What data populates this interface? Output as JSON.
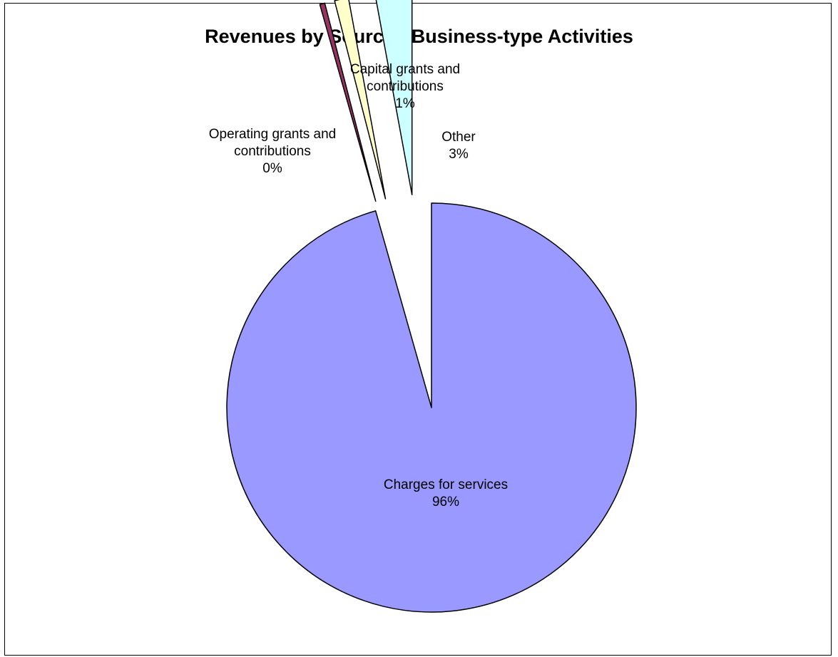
{
  "chart_data": {
    "type": "pie",
    "title": "Revenues by Source - Business-type Activities",
    "slices": [
      {
        "name": "Charges for services",
        "label_lines": [
          "Charges for services",
          "96%"
        ],
        "value": 95.6,
        "percent_label": "96%",
        "color": "#9999ff",
        "exploded": false
      },
      {
        "name": "Operating grants and contributions",
        "label_lines": [
          "Operating grants and",
          "contributions",
          "0%"
        ],
        "value": 0.4,
        "percent_label": "0%",
        "color": "#993366",
        "exploded": true
      },
      {
        "name": "Capital grants and contributions",
        "label_lines": [
          "Capital grants and",
          "contributions",
          "1%"
        ],
        "value": 1.1,
        "percent_label": "1%",
        "color": "#ffffcc",
        "exploded": true
      },
      {
        "name": "Other",
        "label_lines": [
          "Other",
          "3%"
        ],
        "value": 2.9,
        "percent_label": "3%",
        "color": "#ccffff",
        "exploded": true
      }
    ],
    "legend": "none",
    "start_angle": "12 o'clock",
    "direction": "clockwise",
    "slice_outline": "#000000"
  }
}
